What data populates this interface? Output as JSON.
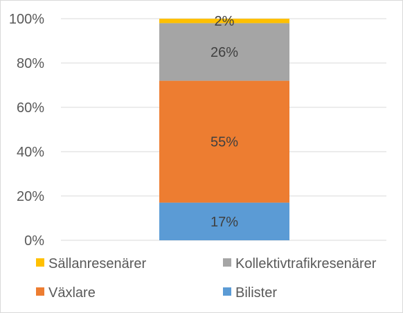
{
  "chart_data": {
    "type": "bar",
    "stacked": true,
    "percent": true,
    "categories": [
      ""
    ],
    "ylim": [
      0,
      100
    ],
    "yticks": [
      "0%",
      "20%",
      "40%",
      "60%",
      "80%",
      "100%"
    ],
    "grid": true,
    "legend_position": "bottom",
    "series": [
      {
        "name": "Bilister",
        "values": [
          17
        ],
        "label": "17%",
        "color": "#5b9bd5"
      },
      {
        "name": "Växlare",
        "values": [
          55
        ],
        "label": "55%",
        "color": "#ed7d31"
      },
      {
        "name": "Kollektivtrafikresenärer",
        "values": [
          26
        ],
        "label": "26%",
        "color": "#a5a5a5"
      },
      {
        "name": "Sällanresenärer",
        "values": [
          2
        ],
        "label": "2%",
        "color": "#ffc000"
      }
    ],
    "legend_order": [
      "Sällanresenärer",
      "Kollektivtrafikresenärer",
      "Växlare",
      "Bilister"
    ]
  }
}
